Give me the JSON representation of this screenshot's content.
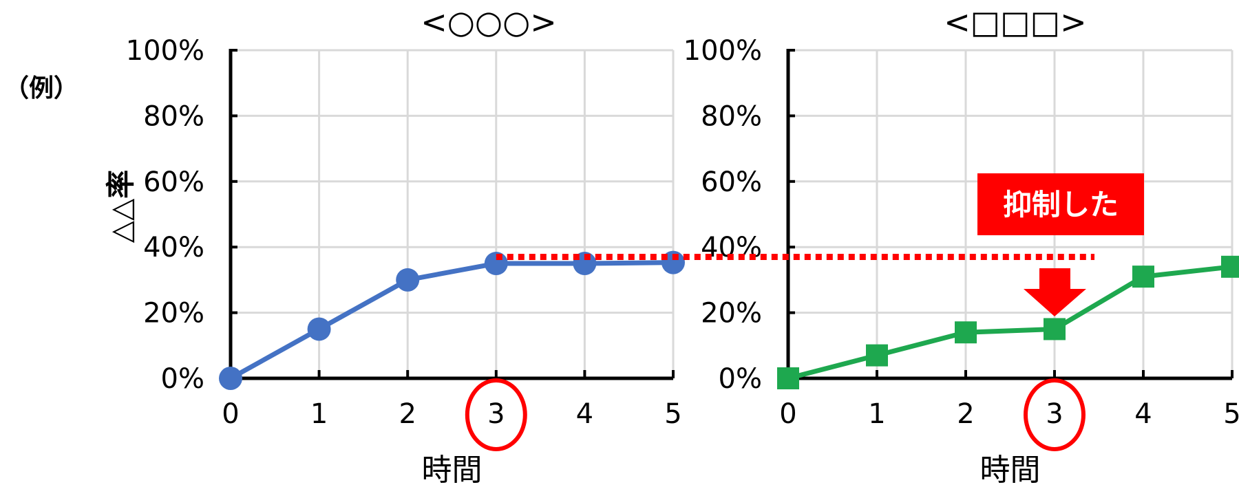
{
  "example_label": "（例）",
  "y_axis_label": "△△率",
  "callout_text": "抑制した",
  "colors": {
    "left_series": "#4472C4",
    "right_series": "#1EA84F",
    "highlight": "#FF0000",
    "grid": "#D9D9D9",
    "axis": "#000000"
  },
  "chart_data": [
    {
      "type": "line",
      "title": "<○○○>",
      "xlabel": "時間",
      "ylabel": "△△率",
      "x": [
        0,
        1,
        2,
        3,
        4,
        5
      ],
      "x_tick_labels": [
        "0",
        "1",
        "2",
        "3",
        "4",
        "5"
      ],
      "y_tick_labels": [
        "0%",
        "20%",
        "40%",
        "60%",
        "80%",
        "100%"
      ],
      "ylim": [
        0,
        100
      ],
      "grid": true,
      "marker": "circle",
      "series": [
        {
          "values": [
            0,
            15,
            30,
            35,
            35,
            35.3
          ]
        }
      ],
      "highlighted_x": 3
    },
    {
      "type": "line",
      "title": "<□□□>",
      "xlabel": "時間",
      "ylabel": "",
      "x": [
        0,
        1,
        2,
        3,
        4,
        5
      ],
      "x_tick_labels": [
        "0",
        "1",
        "2",
        "3",
        "4",
        "5"
      ],
      "y_tick_labels": [
        "0%",
        "20%",
        "40%",
        "60%",
        "80%",
        "100%"
      ],
      "ylim": [
        0,
        100
      ],
      "grid": true,
      "marker": "square",
      "series": [
        {
          "values": [
            0,
            7,
            14,
            15,
            31,
            34
          ]
        }
      ],
      "highlighted_x": 3,
      "reference_line_value": 37
    }
  ]
}
